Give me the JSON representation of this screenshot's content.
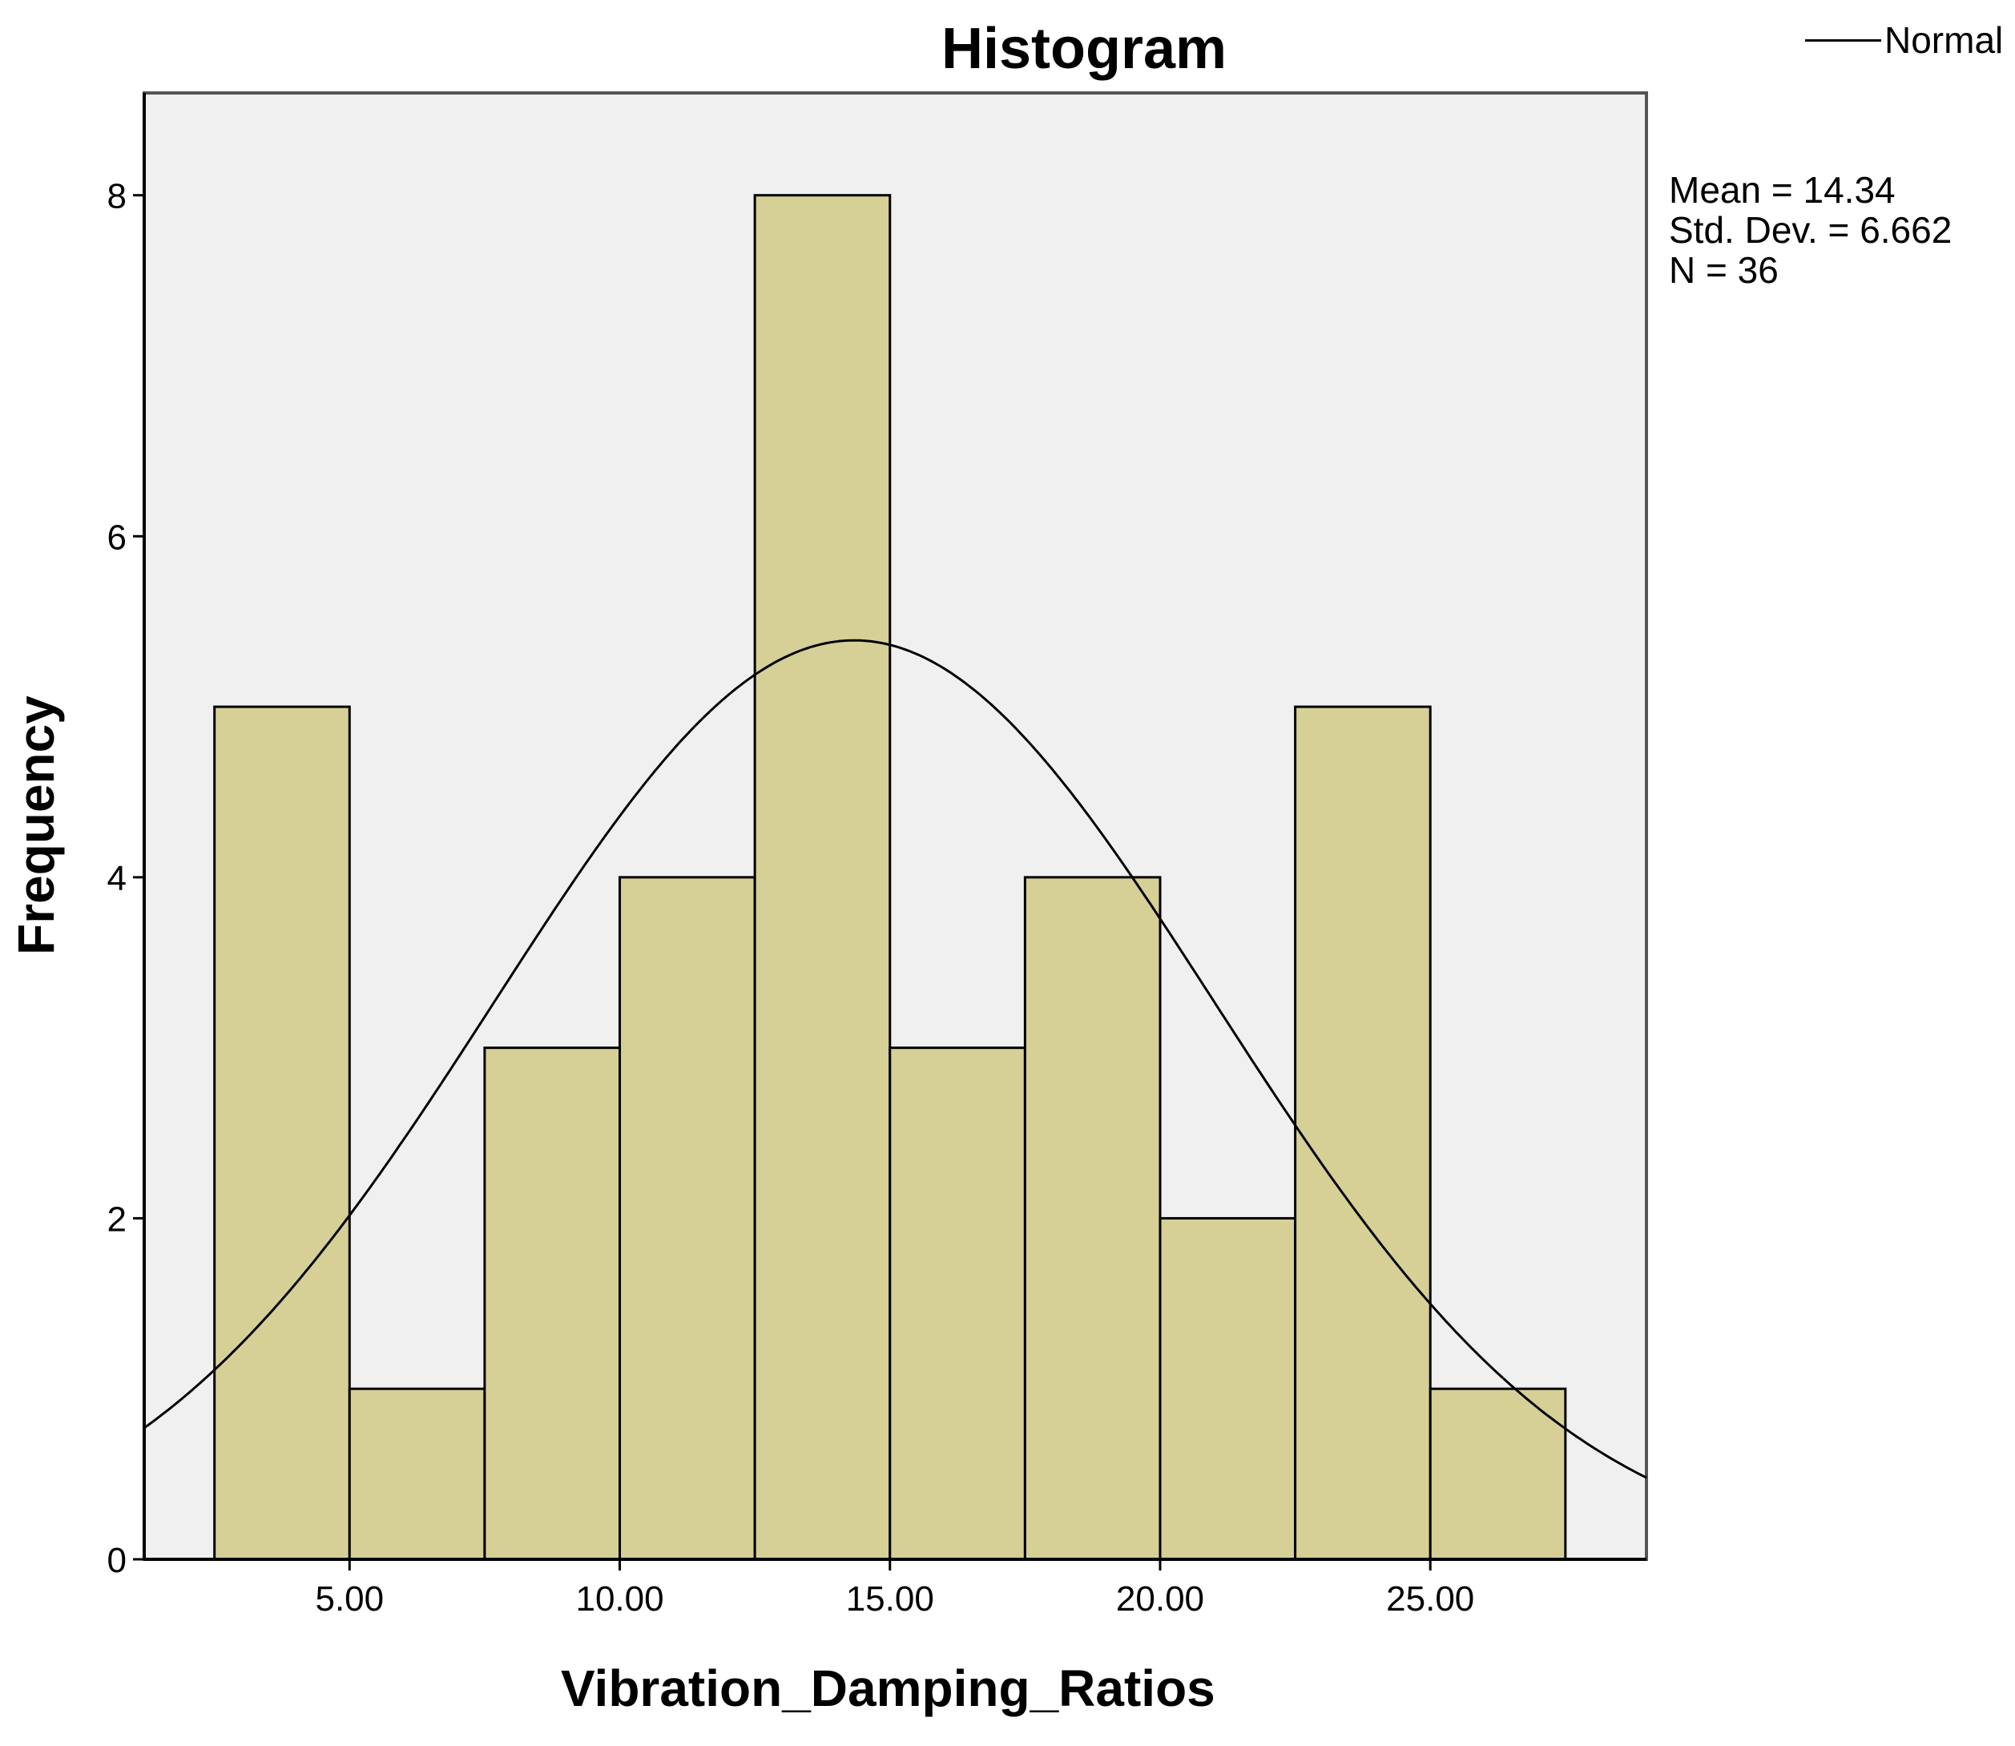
{
  "chart_data": {
    "type": "bar",
    "title": "Histogram",
    "xlabel": "Vibration_Damping_Ratios",
    "ylabel": "Frequency",
    "bins": [
      {
        "start": 2.5,
        "end": 5.0,
        "count": 5
      },
      {
        "start": 5.0,
        "end": 7.5,
        "count": 1
      },
      {
        "start": 7.5,
        "end": 10.0,
        "count": 3
      },
      {
        "start": 10.0,
        "end": 12.5,
        "count": 4
      },
      {
        "start": 12.5,
        "end": 15.0,
        "count": 8
      },
      {
        "start": 15.0,
        "end": 17.5,
        "count": 3
      },
      {
        "start": 17.5,
        "end": 20.0,
        "count": 4
      },
      {
        "start": 20.0,
        "end": 22.5,
        "count": 2
      },
      {
        "start": 22.5,
        "end": 25.0,
        "count": 5
      },
      {
        "start": 25.0,
        "end": 27.5,
        "count": 1
      }
    ],
    "xlim": [
      1.2,
      29.0
    ],
    "ylim": [
      0,
      8.6
    ],
    "xticks": [
      "5.00",
      "10.00",
      "15.00",
      "20.00",
      "25.00"
    ],
    "yticks": [
      "0",
      "2",
      "4",
      "6",
      "8"
    ],
    "normal_curve": {
      "mean": 14.34,
      "sd": 6.662,
      "n": 36,
      "bin_width": 2.5
    },
    "legend": {
      "label": "Normal",
      "position": "top-right"
    },
    "stats": [
      "Mean = 14.34",
      "Std. Dev. = 6.662",
      "N = 36"
    ],
    "colors": {
      "bar_fill": "#d6d097",
      "bar_stroke": "#000000",
      "plot_bg": "#f0f0f0",
      "curve": "#000000"
    }
  }
}
